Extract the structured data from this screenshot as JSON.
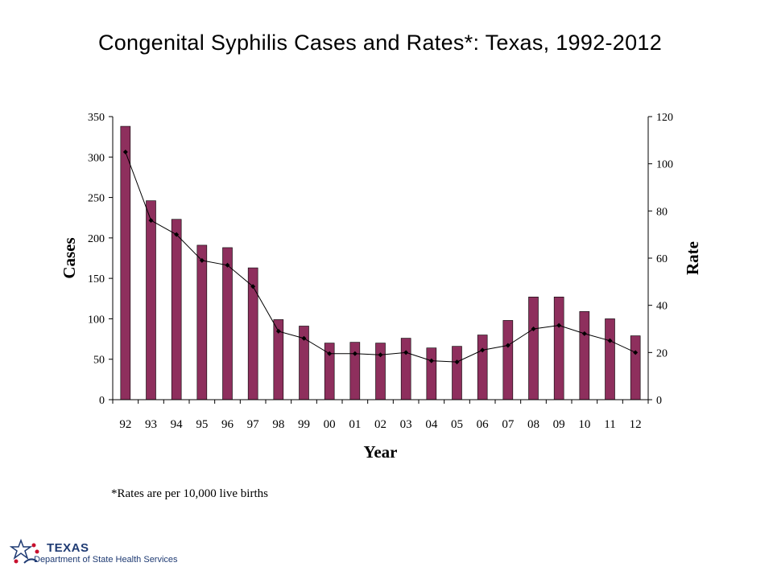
{
  "title": "Congenital Syphilis Cases and Rates*: Texas, 1992-2012",
  "footnote": "*Rates are per 10,000 live births",
  "logo": {
    "name": "TEXAS",
    "department": "Department of State Health Services"
  },
  "colors": {
    "bar": "#8e2f5d",
    "line": "#000000",
    "logo": "#1f3b73"
  },
  "chart_data": {
    "type": "bar",
    "xlabel": "Year",
    "ylabel": "Cases",
    "y2label": "Rate",
    "ylim": [
      0,
      350
    ],
    "y2lim": [
      0,
      120
    ],
    "yticks": [
      0,
      50,
      100,
      150,
      200,
      250,
      300,
      350
    ],
    "y2ticks": [
      0,
      20,
      40,
      60,
      80,
      100,
      120
    ],
    "categories": [
      "92",
      "93",
      "94",
      "95",
      "96",
      "97",
      "98",
      "99",
      "00",
      "01",
      "02",
      "03",
      "04",
      "05",
      "06",
      "07",
      "08",
      "09",
      "10",
      "11",
      "12"
    ],
    "series": [
      {
        "type": "bar",
        "axis": "left",
        "values": [
          338,
          246,
          223,
          191,
          188,
          163,
          99,
          91,
          70,
          71,
          70,
          76,
          64,
          66,
          80,
          98,
          127,
          127,
          109,
          100,
          79
        ]
      },
      {
        "type": "line",
        "axis": "right",
        "values": [
          105,
          76,
          70,
          59,
          57,
          48,
          29,
          26,
          19.5,
          19.5,
          19,
          20,
          16.5,
          16,
          21,
          23,
          30,
          31.5,
          28,
          25,
          20
        ]
      }
    ],
    "grid": false,
    "legend": "none"
  }
}
